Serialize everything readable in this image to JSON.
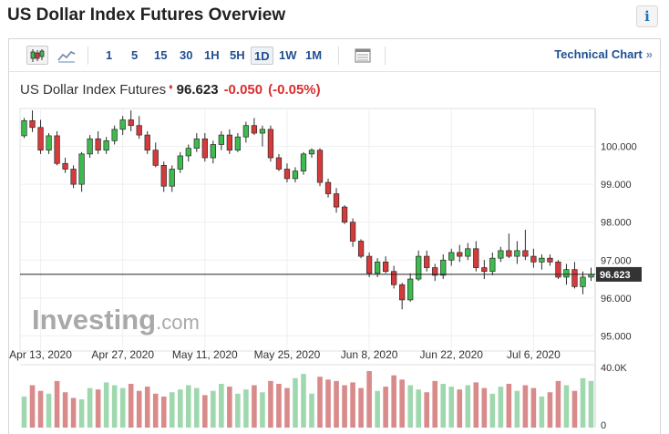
{
  "page": {
    "title": "US Dollar Index Futures Overview",
    "info_label": "i"
  },
  "toolbar": {
    "candle_icon": "candlestick-icon",
    "area_icon": "area-chart-icon",
    "intervals": [
      "1",
      "5",
      "15",
      "30",
      "1H",
      "5H",
      "1D",
      "1W",
      "1M"
    ],
    "active_interval": "1D",
    "table_icon": "table-icon",
    "technical_link": "Technical Chart",
    "technical_arrow": "»"
  },
  "quote": {
    "name": "US Dollar Index Futures",
    "arrow": "♦",
    "price": "96.623",
    "change": "-0.050",
    "change_pct": "(-0.05%)"
  },
  "colors": {
    "up": "#3ebb4e",
    "down": "#d63b3b",
    "vol_up": "#9fd8ae",
    "vol_down": "#d98a8a",
    "brand": "#1f4f93"
  },
  "watermark": {
    "brand": "Investing",
    "suffix": ".com"
  },
  "chart_data": {
    "type": "candlestick",
    "price_axis": {
      "range": [
        94.6,
        101.0
      ],
      "ticks": [
        "100.000",
        "99.000",
        "98.000",
        "97.000",
        "96.000",
        "95.000"
      ],
      "tick_values": [
        100,
        99,
        98,
        97,
        96,
        95
      ]
    },
    "volume_axis": {
      "max_label": "40.0K",
      "min_label": "0",
      "max_value": 40000
    },
    "x_tick_labels": [
      "Apr 13, 2020",
      "Apr 27, 2020",
      "May 11, 2020",
      "May 25, 2020",
      "Jun 8, 2020",
      "Jun 22, 2020",
      "Jul 6, 2020"
    ],
    "x_tick_index": [
      2,
      12,
      22,
      32,
      42,
      52,
      62
    ],
    "last_price": 96.623,
    "last_price_label": "96.623",
    "ohlc": [
      [
        100.28,
        100.75,
        100.22,
        100.68
      ],
      [
        100.68,
        100.95,
        100.38,
        100.5
      ],
      [
        100.5,
        100.7,
        99.8,
        99.9
      ],
      [
        99.9,
        100.35,
        99.8,
        100.28
      ],
      [
        100.28,
        100.4,
        99.5,
        99.55
      ],
      [
        99.55,
        99.7,
        99.3,
        99.4
      ],
      [
        99.4,
        99.5,
        98.9,
        99.0
      ],
      [
        99.0,
        99.85,
        98.8,
        99.8
      ],
      [
        99.8,
        100.3,
        99.7,
        100.2
      ],
      [
        100.2,
        100.4,
        99.8,
        99.9
      ],
      [
        99.9,
        100.25,
        99.8,
        100.15
      ],
      [
        100.15,
        100.55,
        100.05,
        100.45
      ],
      [
        100.45,
        100.8,
        100.3,
        100.7
      ],
      [
        100.7,
        100.95,
        100.4,
        100.55
      ],
      [
        100.55,
        100.8,
        100.2,
        100.3
      ],
      [
        100.3,
        100.4,
        99.8,
        99.9
      ],
      [
        99.9,
        100.1,
        99.45,
        99.5
      ],
      [
        99.5,
        99.6,
        98.8,
        98.95
      ],
      [
        98.95,
        99.5,
        98.8,
        99.4
      ],
      [
        99.4,
        99.85,
        99.3,
        99.75
      ],
      [
        99.75,
        100.05,
        99.6,
        99.95
      ],
      [
        99.95,
        100.35,
        99.85,
        100.2
      ],
      [
        100.2,
        100.35,
        99.6,
        99.7
      ],
      [
        99.7,
        100.15,
        99.55,
        100.05
      ],
      [
        100.05,
        100.4,
        99.9,
        100.3
      ],
      [
        100.3,
        100.45,
        99.8,
        99.9
      ],
      [
        99.9,
        100.35,
        99.85,
        100.25
      ],
      [
        100.25,
        100.65,
        100.1,
        100.55
      ],
      [
        100.55,
        100.75,
        100.3,
        100.35
      ],
      [
        100.35,
        100.55,
        100.0,
        100.45
      ],
      [
        100.45,
        100.55,
        99.6,
        99.7
      ],
      [
        99.7,
        99.8,
        99.35,
        99.4
      ],
      [
        99.4,
        99.55,
        99.05,
        99.15
      ],
      [
        99.15,
        99.45,
        99.05,
        99.35
      ],
      [
        99.35,
        99.85,
        99.25,
        99.8
      ],
      [
        99.8,
        99.95,
        99.7,
        99.9
      ],
      [
        99.9,
        99.95,
        98.95,
        99.05
      ],
      [
        99.05,
        99.15,
        98.65,
        98.75
      ],
      [
        98.75,
        98.9,
        98.25,
        98.4
      ],
      [
        98.4,
        98.45,
        97.95,
        98.0
      ],
      [
        98.0,
        98.1,
        97.35,
        97.5
      ],
      [
        97.5,
        97.55,
        97.05,
        97.1
      ],
      [
        97.1,
        97.2,
        96.55,
        96.65
      ],
      [
        96.65,
        97.05,
        96.55,
        96.95
      ],
      [
        96.95,
        97.1,
        96.65,
        96.7
      ],
      [
        96.7,
        96.85,
        96.25,
        96.35
      ],
      [
        96.35,
        96.4,
        95.7,
        95.95
      ],
      [
        95.95,
        96.65,
        95.9,
        96.5
      ],
      [
        96.5,
        97.25,
        96.45,
        97.1
      ],
      [
        97.1,
        97.25,
        96.7,
        96.8
      ],
      [
        96.8,
        96.9,
        96.45,
        96.6
      ],
      [
        96.6,
        97.15,
        96.5,
        97.0
      ],
      [
        97.0,
        97.3,
        96.85,
        97.2
      ],
      [
        97.2,
        97.4,
        96.95,
        97.1
      ],
      [
        97.1,
        97.45,
        97.0,
        97.3
      ],
      [
        97.3,
        97.5,
        96.7,
        96.8
      ],
      [
        96.8,
        97.0,
        96.5,
        96.7
      ],
      [
        96.7,
        97.2,
        96.6,
        97.05
      ],
      [
        97.05,
        97.35,
        96.95,
        97.25
      ],
      [
        97.25,
        97.7,
        97.05,
        97.1
      ],
      [
        97.1,
        97.5,
        96.9,
        97.25
      ],
      [
        97.25,
        97.8,
        97.0,
        97.1
      ],
      [
        97.1,
        97.3,
        96.8,
        96.95
      ],
      [
        96.95,
        97.15,
        96.75,
        97.05
      ],
      [
        97.05,
        97.15,
        96.85,
        96.95
      ],
      [
        96.95,
        97.0,
        96.5,
        96.55
      ],
      [
        96.55,
        96.9,
        96.35,
        96.75
      ],
      [
        96.75,
        96.95,
        96.25,
        96.3
      ],
      [
        96.3,
        96.7,
        96.1,
        96.55
      ],
      [
        96.55,
        96.8,
        96.45,
        96.62
      ]
    ],
    "volume": [
      22000,
      30000,
      26000,
      24000,
      33000,
      25000,
      21000,
      20000,
      28000,
      27000,
      32000,
      30000,
      28000,
      31000,
      26000,
      29000,
      24000,
      22000,
      25000,
      27000,
      30000,
      28000,
      23000,
      26000,
      31000,
      29000,
      24000,
      27000,
      30000,
      25000,
      33000,
      31000,
      28000,
      35000,
      38000,
      24000,
      36000,
      34000,
      33000,
      30000,
      32000,
      28000,
      40000,
      26000,
      29000,
      37000,
      34000,
      30000,
      27000,
      25000,
      33000,
      31000,
      29000,
      27000,
      30000,
      32000,
      28000,
      24000,
      29000,
      31000,
      26000,
      30000,
      28000,
      22000,
      25000,
      33000,
      30000,
      26000,
      35000,
      33000
    ]
  }
}
